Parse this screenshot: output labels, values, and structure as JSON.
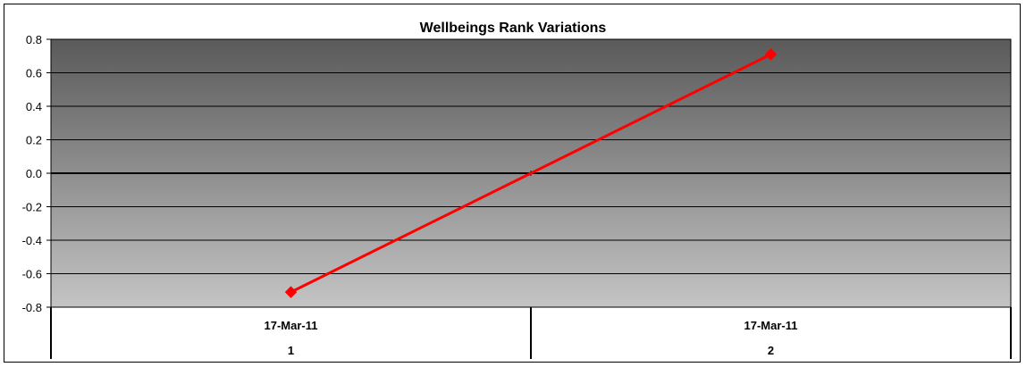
{
  "chart_data": {
    "type": "line",
    "title": "Wellbeings Rank Variations",
    "x": [
      "1",
      "2"
    ],
    "x_date_labels": [
      "17-Mar-11",
      "17-Mar-11"
    ],
    "series": [
      {
        "values": [
          -0.71,
          0.71
        ],
        "color": "#ff0000",
        "marker": "diamond"
      }
    ],
    "ylim": [
      -0.8,
      0.8
    ],
    "yticks": [
      "0.8",
      "0.6",
      "0.4",
      "0.2",
      "0.0",
      "-0.2",
      "-0.4",
      "-0.6",
      "-0.8"
    ],
    "grid": true,
    "plot_background": "gradient dark gray (top) to light gray (bottom)",
    "legend": "none"
  }
}
